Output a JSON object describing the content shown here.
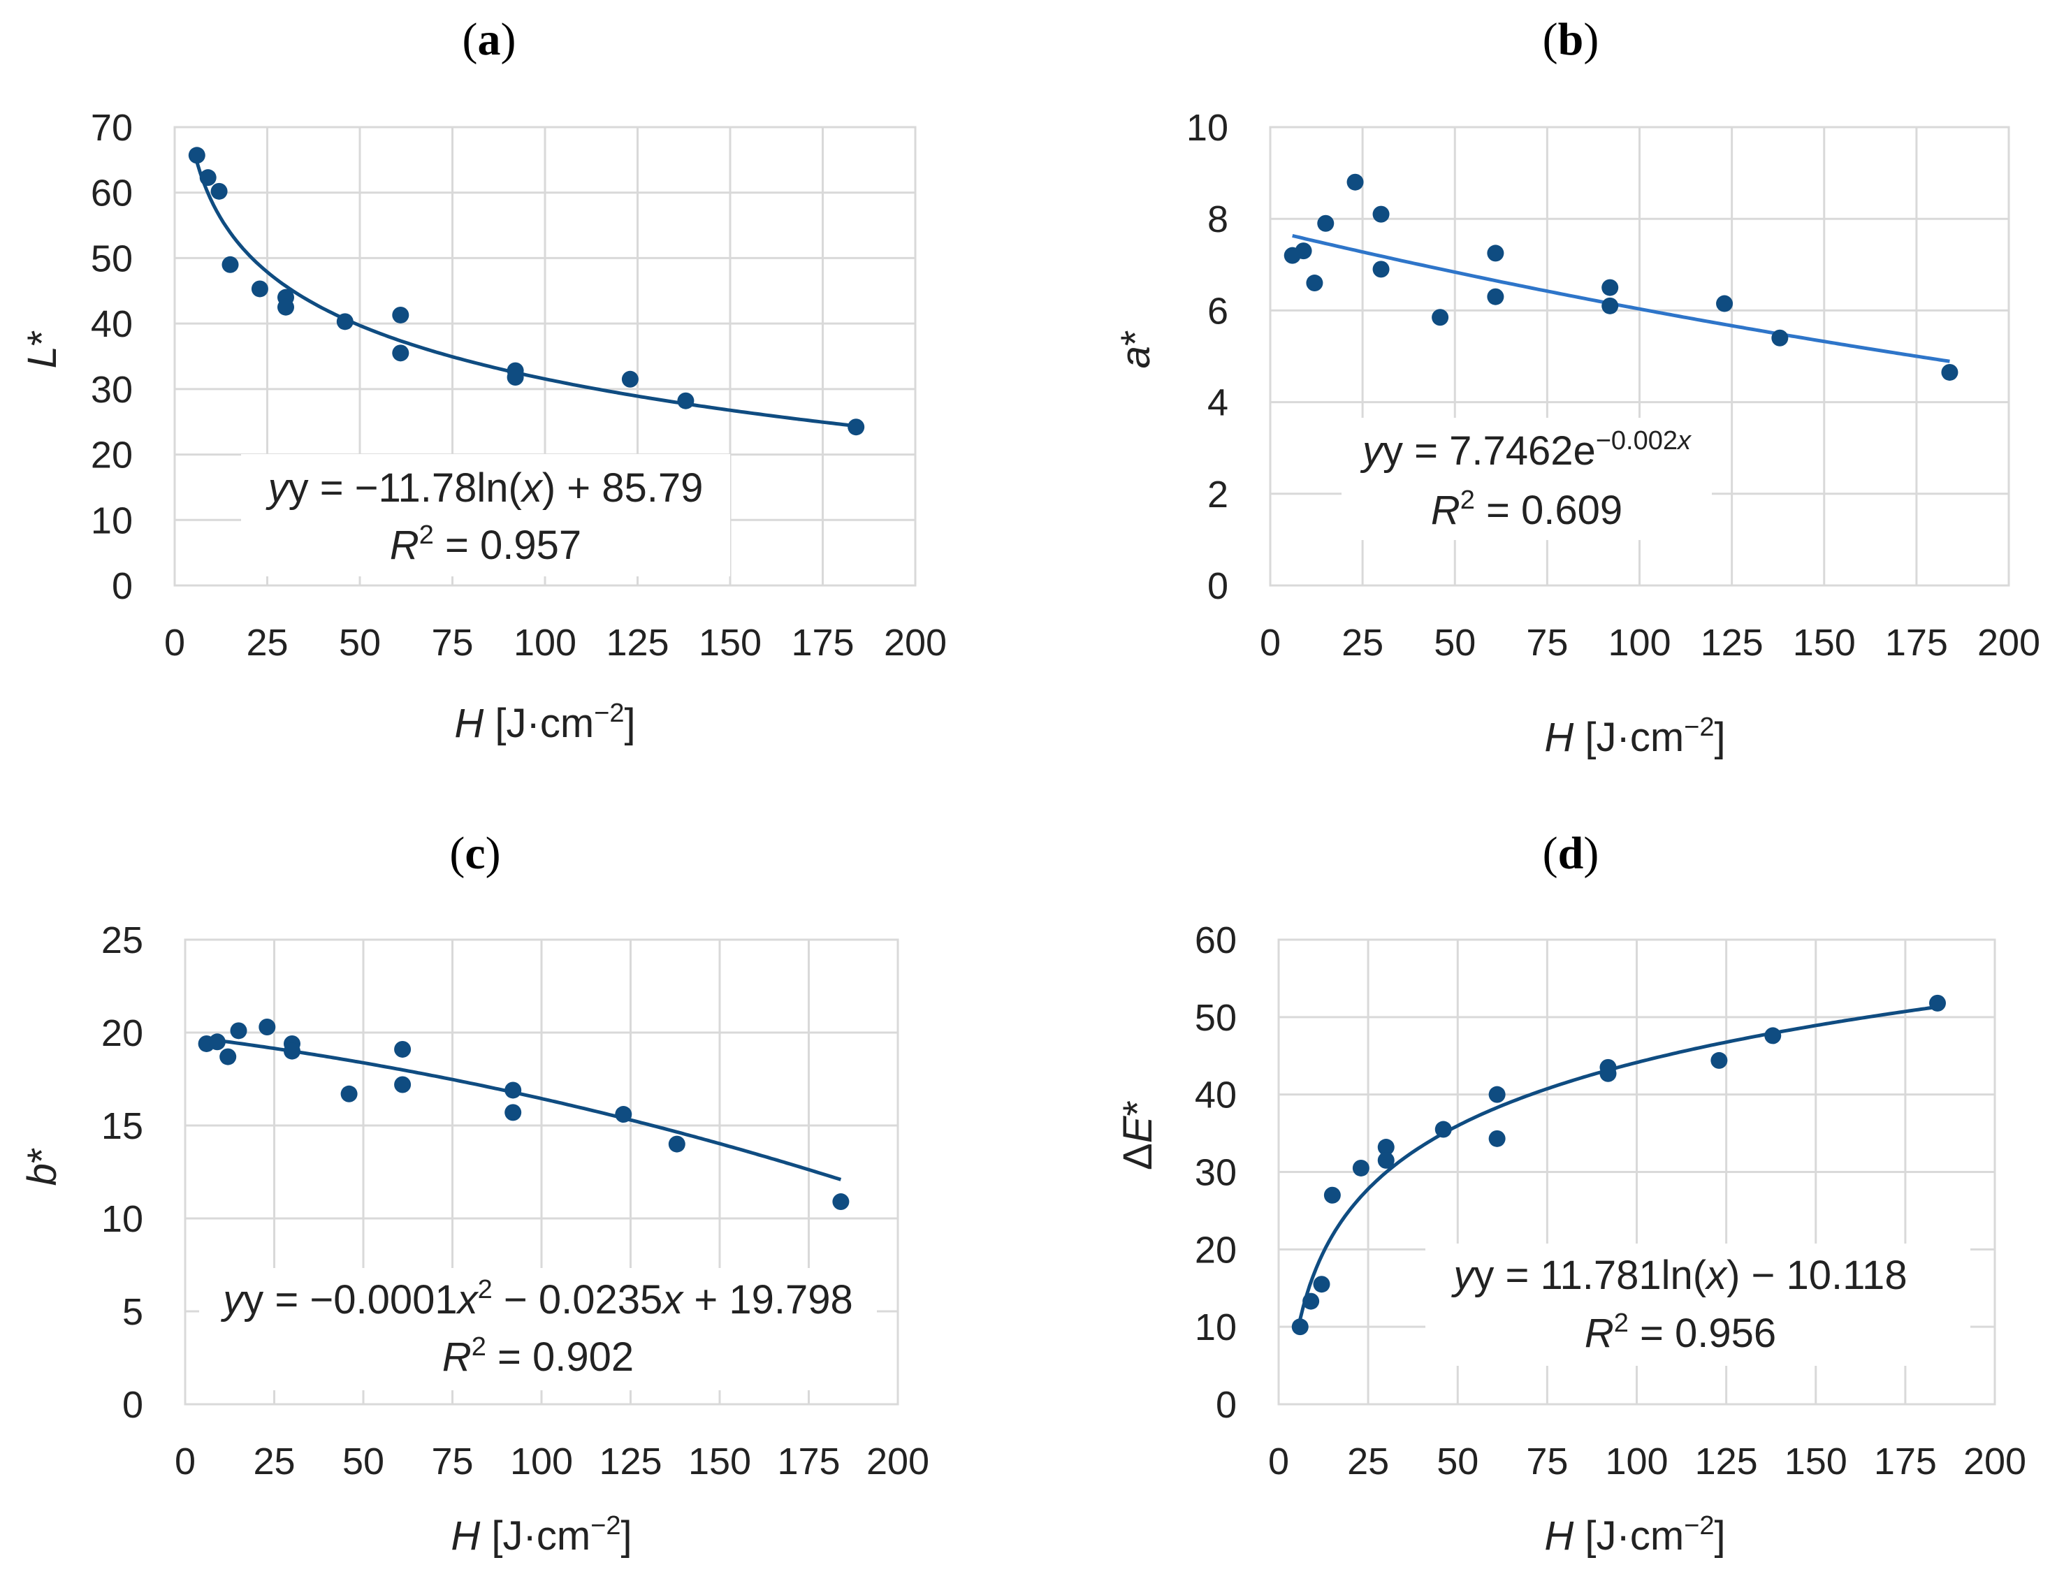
{
  "style": {
    "point_color": "#0f4c81",
    "trend_color_dark": "#0f4c81",
    "trend_color_light": "#2e75c9",
    "grid_color": "#d9d9d9"
  },
  "chart_data": [
    {
      "id": "a",
      "type": "scatter",
      "panel_label": "a",
      "xlabel": {
        "var": "H",
        "unit": " [J·cm",
        "exp": "−2",
        "close": "]"
      },
      "ylabel": {
        "var": "L",
        "suffix": "*"
      },
      "xlim": [
        0,
        200
      ],
      "ylim": [
        0,
        70
      ],
      "xticks": [
        0,
        25,
        50,
        75,
        100,
        125,
        150,
        175,
        200
      ],
      "yticks": [
        0,
        10,
        20,
        30,
        40,
        50,
        60,
        70
      ],
      "x": [
        6,
        9,
        12,
        15,
        23,
        30,
        30,
        46,
        61,
        61,
        92,
        92,
        123,
        138,
        184
      ],
      "y": [
        65.7,
        62.3,
        60.2,
        49.0,
        45.3,
        44.0,
        42.5,
        40.3,
        41.3,
        35.5,
        32.8,
        31.8,
        31.5,
        28.2,
        24.2
      ],
      "trendline": {
        "kind": "log",
        "a": -11.78,
        "b": 85.79,
        "x_from": 6,
        "x_to": 184,
        "color": "#0f4c81"
      },
      "equation": {
        "pre": "y = −11.78ln(",
        "xv": "x",
        "post": ") + 85.79"
      },
      "r2": {
        "r": "R",
        "sup": "2",
        "val": " = 0.957"
      }
    },
    {
      "id": "b",
      "type": "scatter",
      "panel_label": "b",
      "xlabel": {
        "var": "H",
        "unit": " [J·cm",
        "exp": "−2",
        "close": "]"
      },
      "ylabel": {
        "var": "a",
        "suffix": "*"
      },
      "xlim": [
        0,
        200
      ],
      "ylim": [
        0,
        10
      ],
      "xticks": [
        0,
        25,
        50,
        75,
        100,
        125,
        150,
        175,
        200
      ],
      "yticks": [
        0,
        2,
        4,
        6,
        8,
        10
      ],
      "x": [
        6,
        9,
        12,
        15,
        23,
        30,
        30,
        46,
        61,
        61,
        92,
        92,
        123,
        138,
        184
      ],
      "y": [
        7.2,
        7.3,
        6.6,
        7.9,
        8.8,
        8.1,
        6.9,
        5.85,
        7.25,
        6.3,
        6.5,
        6.1,
        6.15,
        5.4,
        4.65
      ],
      "trendline": {
        "kind": "exp",
        "a": 7.7462,
        "b": -0.0025,
        "x_from": 6,
        "x_to": 184,
        "color": "#2e75c9"
      },
      "equation": {
        "pre": "y = 7.7462e",
        "sup_pre": "−0.002",
        "sup_xv": "x"
      },
      "r2": {
        "r": "R",
        "sup": "2",
        "val": " = 0.609"
      }
    },
    {
      "id": "c",
      "type": "scatter",
      "panel_label": "c",
      "xlabel": {
        "var": "H",
        "unit": " [J·cm",
        "exp": "−2",
        "close": "]"
      },
      "ylabel": {
        "var": "b",
        "suffix": "*"
      },
      "xlim": [
        0,
        200
      ],
      "ylim": [
        0,
        25
      ],
      "xticks": [
        0,
        25,
        50,
        75,
        100,
        125,
        150,
        175,
        200
      ],
      "yticks": [
        0,
        5,
        10,
        15,
        20,
        25
      ],
      "x": [
        6,
        9,
        12,
        15,
        23,
        30,
        30,
        46,
        61,
        61,
        92,
        92,
        123,
        138,
        184
      ],
      "y": [
        19.4,
        19.5,
        18.7,
        20.1,
        20.3,
        19.4,
        19.0,
        16.7,
        19.1,
        17.2,
        16.9,
        15.7,
        15.6,
        14.0,
        10.9
      ],
      "trendline": {
        "kind": "poly2",
        "a": -0.0001,
        "b": -0.0235,
        "c": 19.798,
        "x_from": 6,
        "x_to": 184,
        "color": "#0f4c81"
      },
      "equation": {
        "pre": "y = −0.0001",
        "xv": "x",
        "sup": "2",
        "mid": " − 0.0235",
        "xv2": "x",
        "post": " + 19.798"
      },
      "r2": {
        "r": "R",
        "sup": "2",
        "val": " = 0.902"
      }
    },
    {
      "id": "d",
      "type": "scatter",
      "panel_label": "d",
      "xlabel": {
        "var": "H",
        "unit": " [J·cm",
        "exp": "−2",
        "close": "]"
      },
      "ylabel": {
        "pre": "Δ",
        "var": "E",
        "suffix": "*"
      },
      "xlim": [
        0,
        200
      ],
      "ylim": [
        0,
        60
      ],
      "xticks": [
        0,
        25,
        50,
        75,
        100,
        125,
        150,
        175,
        200
      ],
      "yticks": [
        0,
        10,
        20,
        30,
        40,
        50,
        60
      ],
      "x": [
        6,
        9,
        12,
        15,
        23,
        30,
        30,
        46,
        61,
        61,
        92,
        92,
        123,
        138,
        184
      ],
      "y": [
        10.0,
        13.3,
        15.5,
        27.0,
        30.5,
        33.2,
        31.5,
        35.5,
        40.0,
        34.3,
        43.5,
        42.7,
        44.4,
        47.6,
        51.8
      ],
      "trendline": {
        "kind": "log",
        "a": 11.781,
        "b": -10.118,
        "x_from": 6,
        "x_to": 184,
        "color": "#0f4c81"
      },
      "equation": {
        "pre": "y = 11.781ln(",
        "xv": "x",
        "post": ") − 10.118"
      },
      "r2": {
        "r": "R",
        "sup": "2",
        "val": " = 0.956"
      }
    }
  ]
}
